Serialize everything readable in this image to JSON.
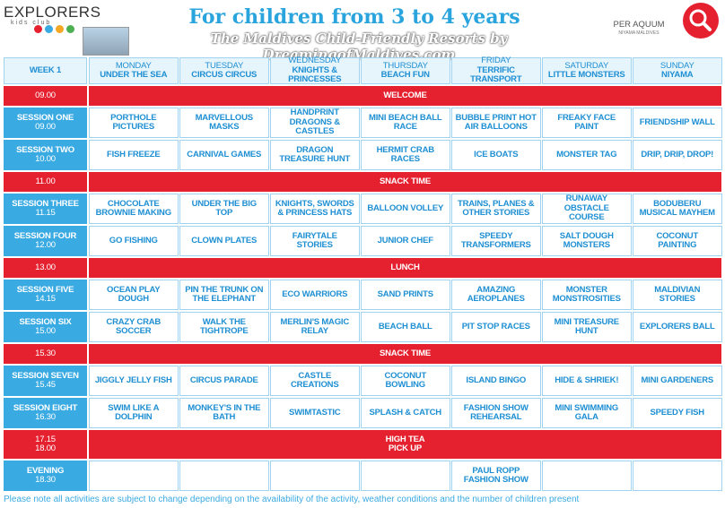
{
  "header": {
    "logo": "EXPLORERS",
    "logo_sub": "kids club",
    "title": "For children from 3 to 4 years",
    "subtitle": "The Maldives Child-Friendly Resorts by DreamingofMaldives.com",
    "brand": "PER AQUUM",
    "brand_sub": "NIYAMA MALDIVES"
  },
  "table": {
    "week": "WEEK 1",
    "days": [
      {
        "day": "MONDAY",
        "theme": "UNDER THE SEA"
      },
      {
        "day": "TUESDAY",
        "theme": "CIRCUS CIRCUS"
      },
      {
        "day": "WEDNESDAY",
        "theme": "KNIGHTS & PRINCESSES"
      },
      {
        "day": "THURSDAY",
        "theme": "BEACH FUN"
      },
      {
        "day": "FRIDAY",
        "theme": "TERRIFIC TRANSPORT"
      },
      {
        "day": "SATURDAY",
        "theme": "LITTLE MONSTERS"
      },
      {
        "day": "SUNDAY",
        "theme": "NIYAMA"
      }
    ],
    "rows": [
      {
        "type": "band",
        "time": [
          "09.00"
        ],
        "label": [
          "WELCOME"
        ]
      },
      {
        "type": "session",
        "label": [
          "SESSION ONE",
          "09.00"
        ],
        "cells": [
          "PORTHOLE PICTURES",
          "MARVELLOUS MASKS",
          "HANDPRINT DRAGONS & CASTLES",
          "MINI BEACH BALL RACE",
          "BUBBLE PRINT HOT AIR BALLOONS",
          "FREAKY FACE PAINT",
          "FRIENDSHIP WALL"
        ]
      },
      {
        "type": "session",
        "label": [
          "SESSION TWO",
          "10.00"
        ],
        "cells": [
          "FISH FREEZE",
          "CARNIVAL GAMES",
          "DRAGON TREASURE HUNT",
          "HERMIT CRAB RACES",
          "ICE BOATS",
          "MONSTER TAG",
          "DRIP, DRIP, DROP!"
        ]
      },
      {
        "type": "band",
        "time": [
          "11.00"
        ],
        "label": [
          "SNACK TIME"
        ]
      },
      {
        "type": "session",
        "label": [
          "SESSION THREE",
          "11.15"
        ],
        "cells": [
          "CHOCOLATE BROWNIE MAKING",
          "UNDER THE BIG TOP",
          "KNIGHTS, SWORDS & PRINCESS HATS",
          "BALLOON VOLLEY",
          "TRAINS, PLANES & OTHER STORIES",
          "RUNAWAY OBSTACLE COURSE",
          "BODUBERU MUSICAL MAYHEM"
        ]
      },
      {
        "type": "session",
        "label": [
          "SESSION FOUR",
          "12.00"
        ],
        "cells": [
          "GO FISHING",
          "CLOWN PLATES",
          "FAIRYTALE STORIES",
          "JUNIOR CHEF",
          "SPEEDY TRANSFORMERS",
          "SALT DOUGH MONSTERS",
          "COCONUT PAINTING"
        ]
      },
      {
        "type": "band",
        "time": [
          "13.00"
        ],
        "label": [
          "LUNCH"
        ]
      },
      {
        "type": "session",
        "label": [
          "SESSION FIVE",
          "14.15"
        ],
        "cells": [
          "OCEAN PLAY DOUGH",
          "PIN THE TRUNK ON THE ELEPHANT",
          "ECO WARRIORS",
          "SAND PRINTS",
          "AMAZING AEROPLANES",
          "MONSTER MONSTROSITIES",
          "MALDIVIAN STORIES"
        ]
      },
      {
        "type": "session",
        "label": [
          "SESSION SIX",
          "15.00"
        ],
        "cells": [
          "CRAZY CRAB SOCCER",
          "WALK THE TIGHTROPE",
          "MERLIN'S MAGIC RELAY",
          "BEACH BALL",
          "PIT STOP RACES",
          "MINI TREASURE HUNT",
          "EXPLORERS BALL"
        ]
      },
      {
        "type": "band",
        "time": [
          "15.30"
        ],
        "label": [
          "SNACK TIME"
        ]
      },
      {
        "type": "session",
        "label": [
          "SESSION SEVEN",
          "15.45"
        ],
        "cells": [
          "JIGGLY JELLY FISH",
          "CIRCUS PARADE",
          "CASTLE CREATIONS",
          "COCONUT BOWLING",
          "ISLAND BINGO",
          "HIDE & SHRIEK!",
          "MINI GARDENERS"
        ]
      },
      {
        "type": "session",
        "label": [
          "SESSION EIGHT",
          "16.30"
        ],
        "cells": [
          "SWIM LIKE A DOLPHIN",
          "MONKEY'S IN THE BATH",
          "SWIMTASTIC",
          "SPLASH & CATCH",
          "FASHION SHOW REHEARSAL",
          "MINI SWIMMING GALA",
          "SPEEDY FISH"
        ]
      },
      {
        "type": "band",
        "time": [
          "17.15",
          "18.00"
        ],
        "label": [
          "HIGH TEA",
          "PICK UP"
        ]
      },
      {
        "type": "session",
        "label": [
          "EVENING",
          "18.30"
        ],
        "cells": [
          null,
          null,
          null,
          null,
          "PAUL ROPP FASHION SHOW",
          null,
          null
        ]
      }
    ]
  },
  "footer": "Please note all activities are subject to change depending on the availability of the activity, weather conditions and the number of children present"
}
